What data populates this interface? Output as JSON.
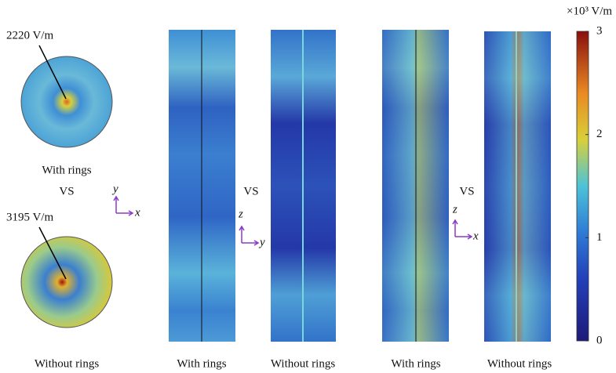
{
  "figure": {
    "annotations": [
      "2220 V/m",
      "3195 V/m"
    ],
    "vs_labels": [
      "VS",
      "VS",
      "VS"
    ],
    "axes": [
      {
        "up": "y",
        "right": "x"
      },
      {
        "up": "z",
        "right": "y"
      },
      {
        "up": "z",
        "right": "x"
      }
    ],
    "panel_labels": [
      "With rings",
      "Without rings",
      "With rings",
      "Without rings",
      "With rings",
      "Without rings"
    ],
    "colorbar": {
      "unit": "×10³ V/m",
      "lim": [
        0,
        3
      ],
      "ticks": [
        0,
        1,
        2,
        3
      ]
    }
  }
}
